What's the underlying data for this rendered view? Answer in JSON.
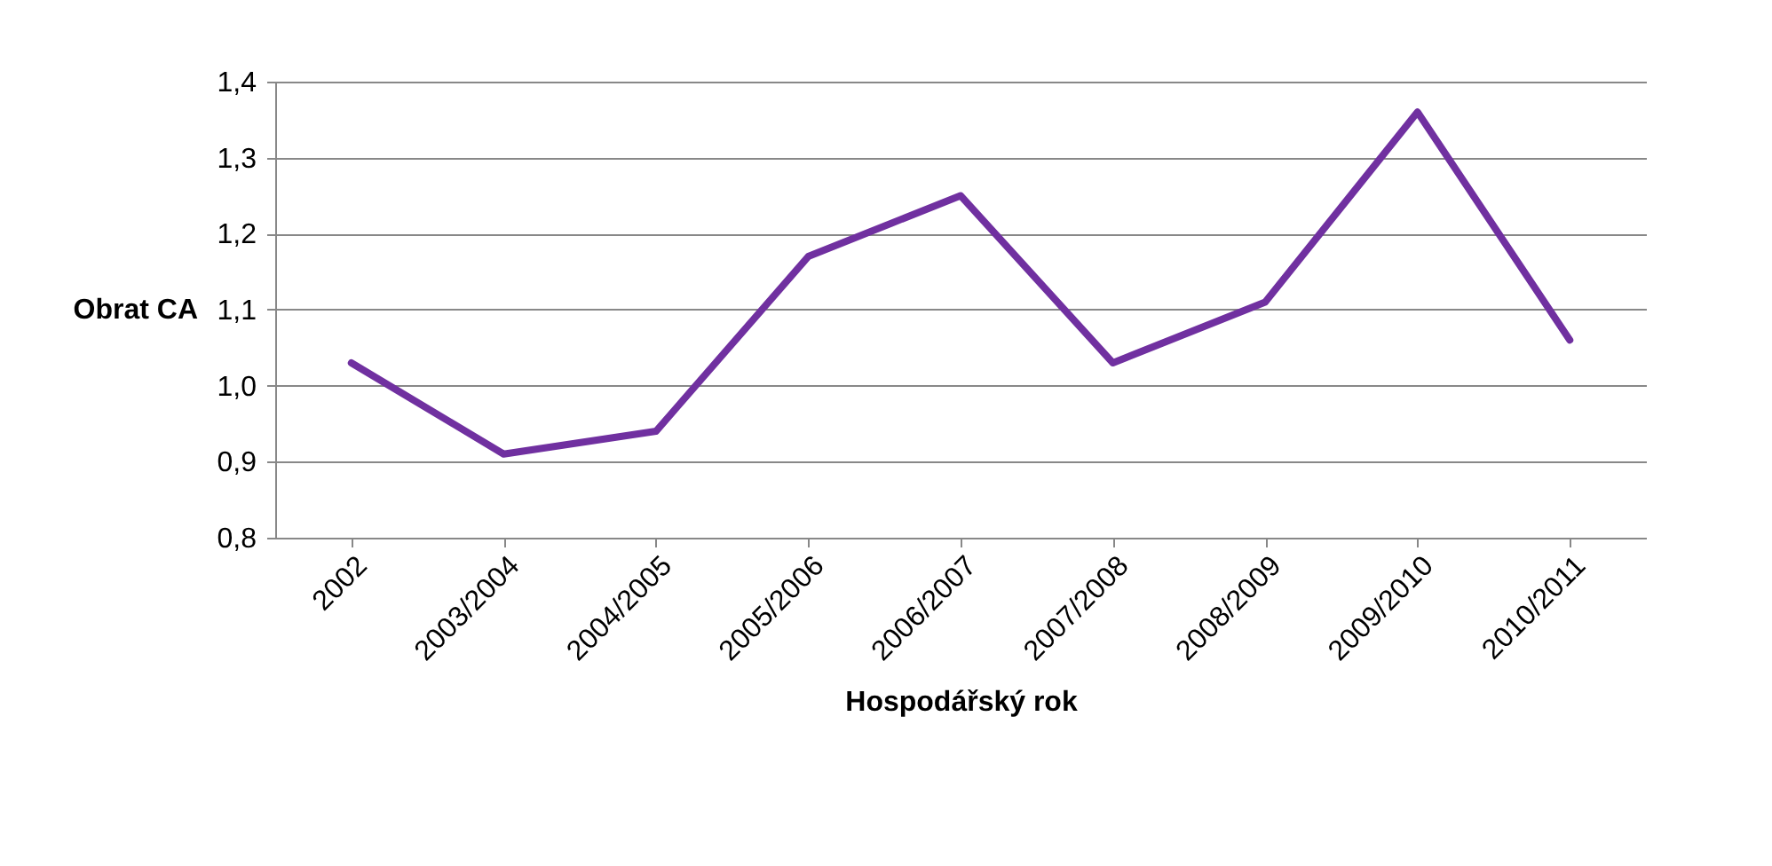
{
  "chart_data": {
    "type": "line",
    "xlabel": "Hospodářský rok",
    "ylabel": "Obrat CA",
    "categories": [
      "2002",
      "2003/2004",
      "2004/2005",
      "2005/2006",
      "2006/2007",
      "2007/2008",
      "2008/2009",
      "2009/2010",
      "2010/2011"
    ],
    "series": [
      {
        "color": "#7030a0",
        "values": [
          1.03,
          0.91,
          0.94,
          1.17,
          1.25,
          1.03,
          1.11,
          1.36,
          1.06
        ]
      }
    ],
    "ylim": [
      0.8,
      1.4
    ],
    "yticks": [
      {
        "value": 0.8,
        "label": "0,8"
      },
      {
        "value": 0.9,
        "label": "0,9"
      },
      {
        "value": 1.0,
        "label": "1,0"
      },
      {
        "value": 1.1,
        "label": "1,1"
      },
      {
        "value": 1.2,
        "label": "1,2"
      },
      {
        "value": 1.3,
        "label": "1,3"
      },
      {
        "value": 1.4,
        "label": "1,4"
      }
    ],
    "grid": "y",
    "legend": false,
    "marker": "none",
    "line_style": "solid"
  }
}
